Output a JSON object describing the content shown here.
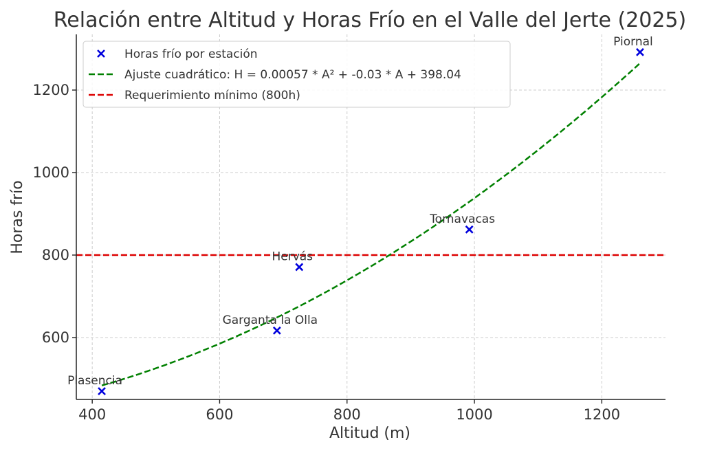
{
  "chart_data": {
    "type": "scatter",
    "title": "Relación entre Altitud y Horas Frío en el Valle del Jerte (2025)",
    "xlabel": "Altitud (m)",
    "ylabel": "Horas frío",
    "xlim": [
      375,
      1300
    ],
    "ylim": [
      450,
      1335
    ],
    "xticks": [
      400,
      600,
      800,
      1000,
      1200
    ],
    "yticks": [
      600,
      800,
      1000,
      1200
    ],
    "grid": true,
    "legend_position": "top-left",
    "points": {
      "name": "Horas frío por estación",
      "color": "#0000dd",
      "marker": "x",
      "data": [
        {
          "label": "Plasencia",
          "x": 415,
          "y": 470
        },
        {
          "label": "Garganta la Olla",
          "x": 690,
          "y": 617
        },
        {
          "label": "Hervás",
          "x": 725,
          "y": 771
        },
        {
          "label": "Tornavacas",
          "x": 992,
          "y": 862
        },
        {
          "label": "Piornal",
          "x": 1260,
          "y": 1292
        }
      ]
    },
    "fit": {
      "name": "Ajuste cuadrático: H = 0.00057 * A² + -0.03 * A + 398.04",
      "color": "#008000",
      "style": "dashed",
      "coefficients": [
        0.00057,
        -0.03,
        398.04
      ],
      "x_range": [
        415,
        1260
      ]
    },
    "threshold": {
      "name": "Requerimiento mínimo (800h)",
      "color": "#dd0000",
      "style": "dashed",
      "y": 800
    }
  }
}
